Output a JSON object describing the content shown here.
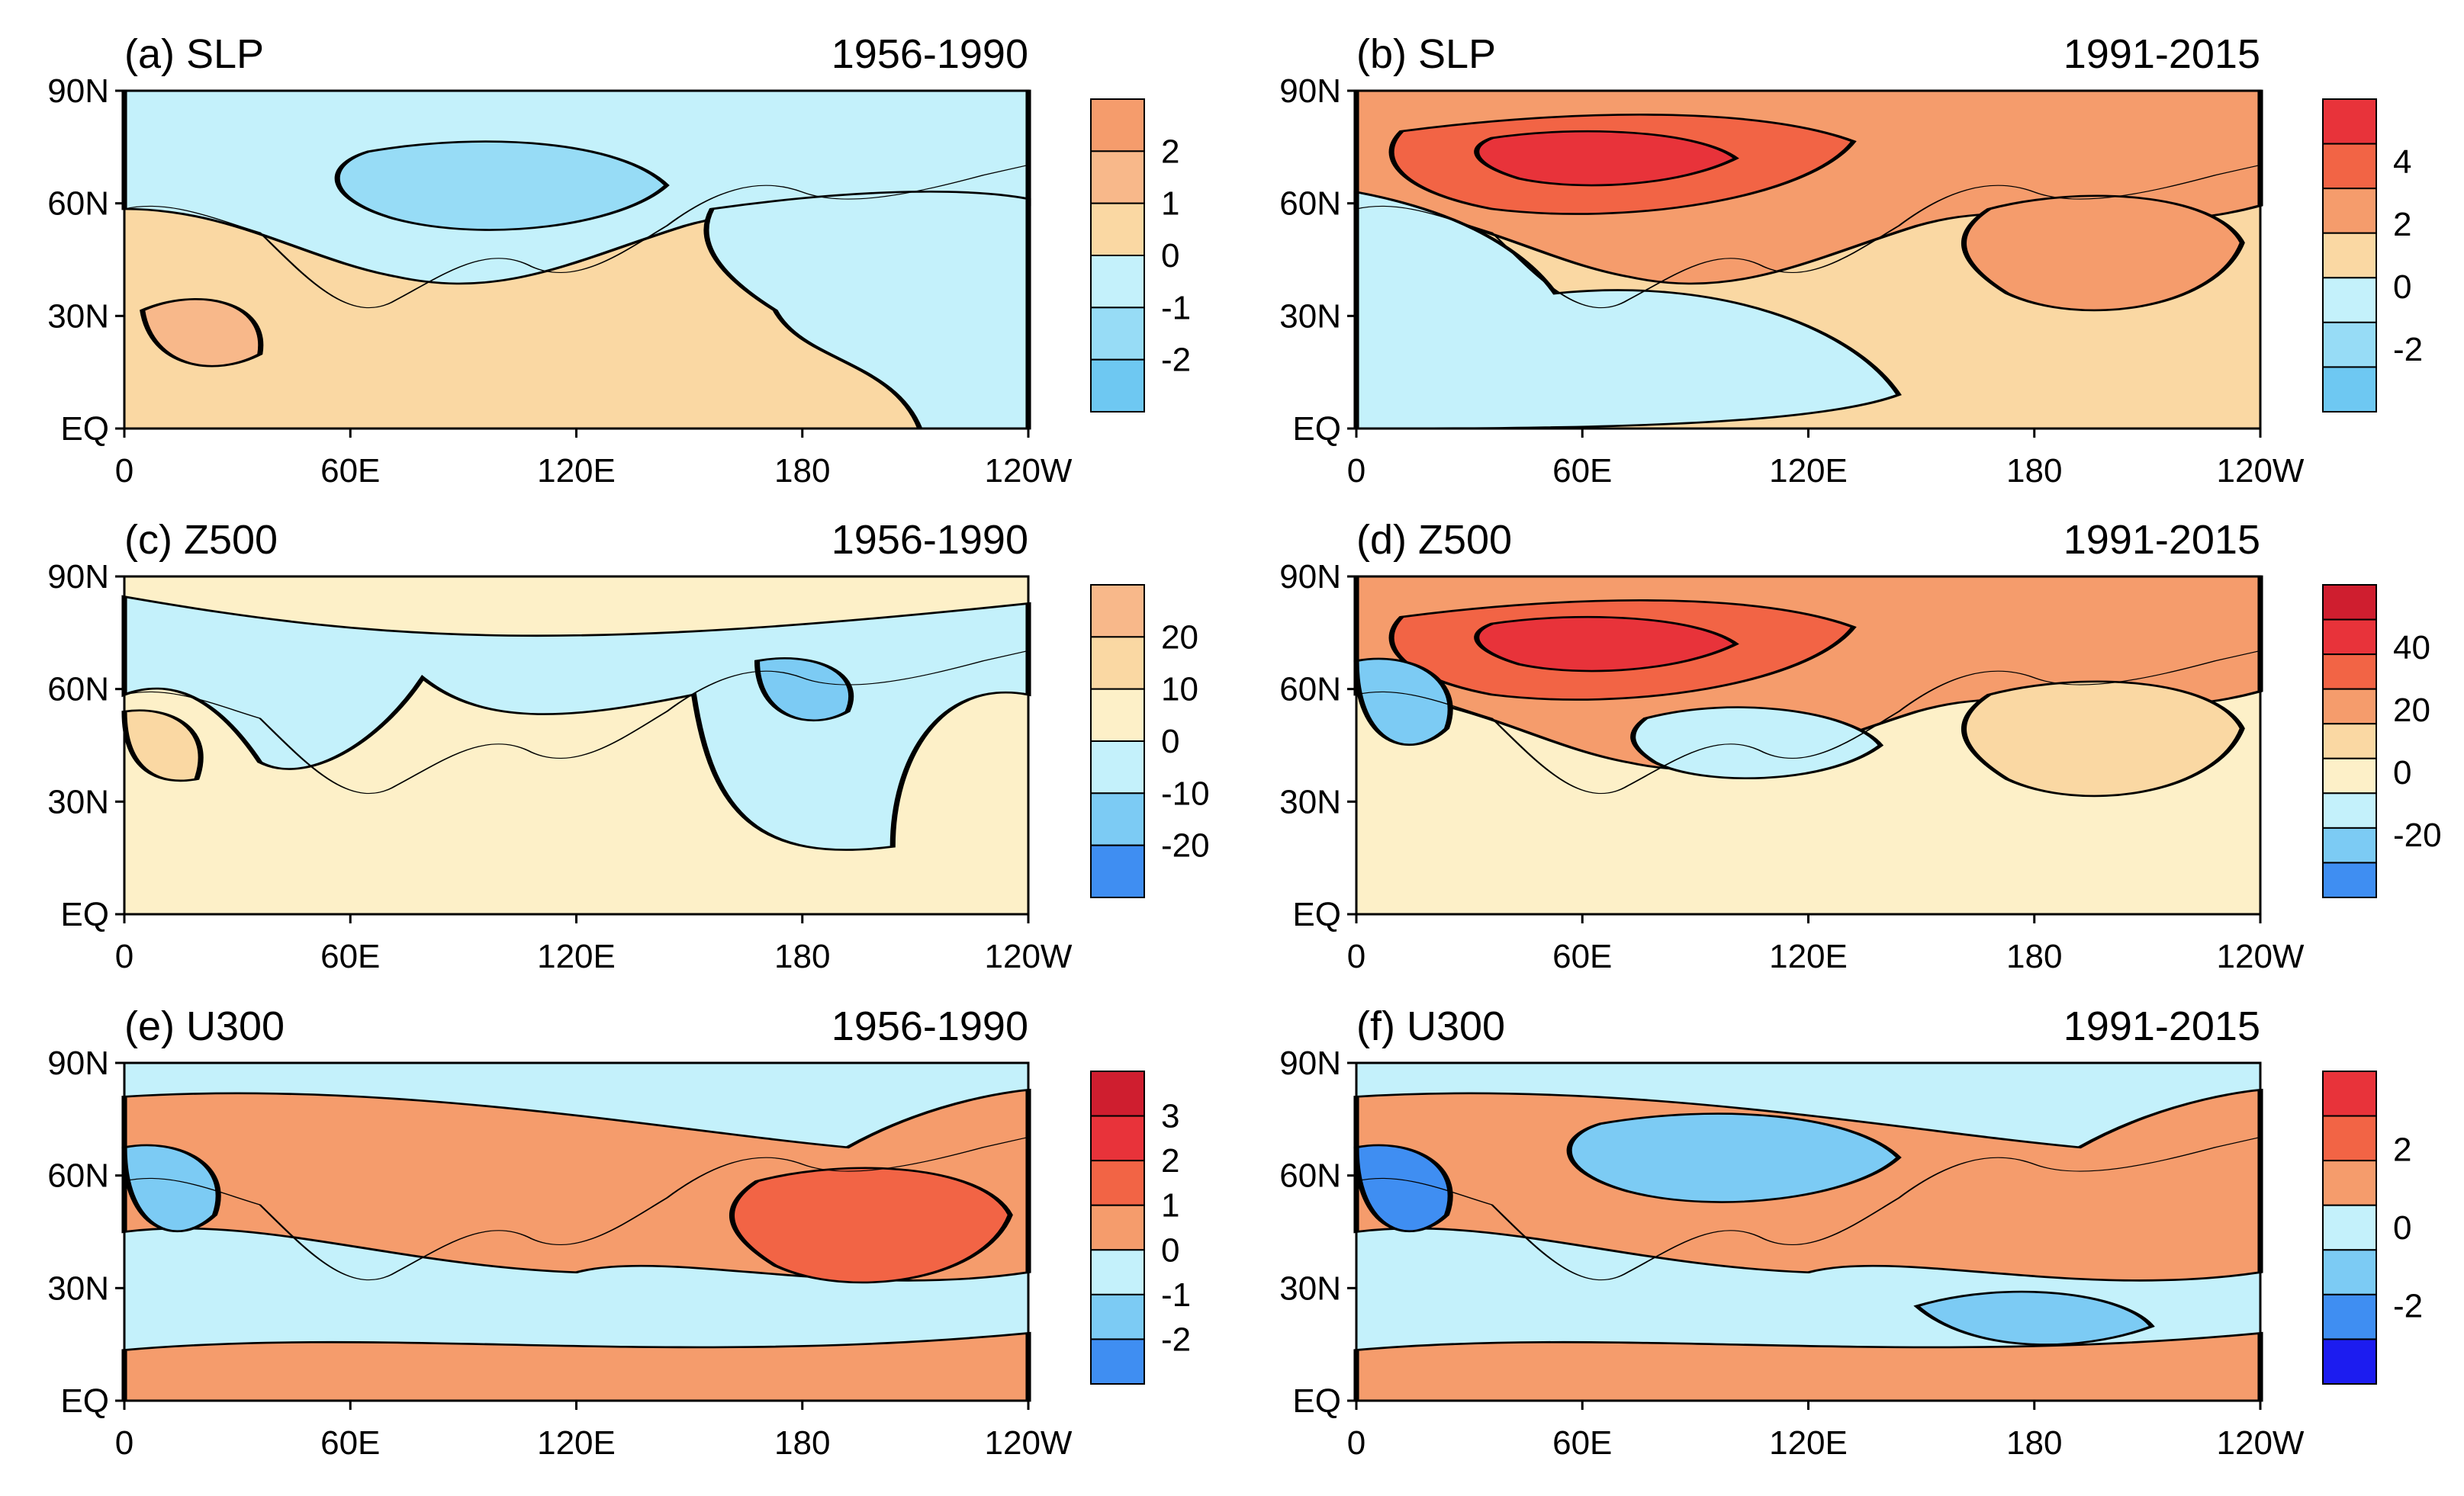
{
  "axes": {
    "lat_ticks": [
      "90N",
      "60N",
      "30N",
      "EQ"
    ],
    "lon_ticks": [
      "0",
      "60E",
      "120E",
      "180",
      "120W"
    ]
  },
  "panels": [
    {
      "id": "a",
      "title": "(a) SLP",
      "period": "1956-1990",
      "colorbar": {
        "labels": [
          "2",
          "1",
          "0",
          "-1",
          "-2"
        ],
        "colors": [
          "#f59c6c",
          "#f8b88a",
          "#fad8a3",
          "#c4f1fb",
          "#97dcf6",
          "#6ec8f2"
        ]
      },
      "map": {
        "base": "#fad8a3",
        "regions": [
          {
            "color": "#c4f1fb",
            "shape": "north-band"
          },
          {
            "color": "#97dcf6",
            "shape": "blob-siberia"
          },
          {
            "color": "#c4f1fb",
            "shape": "pacific-east"
          },
          {
            "color": "#f8b88a",
            "shape": "blob-africa"
          }
        ]
      }
    },
    {
      "id": "b",
      "title": "(b) SLP",
      "period": "1991-2015",
      "colorbar": {
        "labels": [
          "4",
          "2",
          "0",
          "-2"
        ],
        "colors": [
          "#e8333a",
          "#f26445",
          "#f59c6c",
          "#fad8a3",
          "#c4f1fb",
          "#97dcf6",
          "#6ec8f2"
        ]
      },
      "map": {
        "base": "#fad8a3",
        "regions": [
          {
            "color": "#f59c6c",
            "shape": "north-band"
          },
          {
            "color": "#f26445",
            "shape": "blob-ural"
          },
          {
            "color": "#e8333a",
            "shape": "blob-ural-core"
          },
          {
            "color": "#c4f1fb",
            "shape": "europe-south"
          },
          {
            "color": "#f59c6c",
            "shape": "blob-pacific"
          }
        ]
      }
    },
    {
      "id": "c",
      "title": "(c) Z500",
      "period": "1956-1990",
      "colorbar": {
        "labels": [
          "20",
          "10",
          "0",
          "-10",
          "-20"
        ],
        "colors": [
          "#f8b88a",
          "#fad8a3",
          "#fdf0c8",
          "#c4f1fb",
          "#7ccbf4",
          "#3f8ef2"
        ]
      },
      "map": {
        "base": "#fdf0c8",
        "regions": [
          {
            "color": "#c4f1fb",
            "shape": "north-band-wide"
          },
          {
            "color": "#7ccbf4",
            "shape": "blob-kamchatka"
          },
          {
            "color": "#fad8a3",
            "shape": "blob-europe-west"
          }
        ]
      }
    },
    {
      "id": "d",
      "title": "(d) Z500",
      "period": "1991-2015",
      "colorbar": {
        "labels": [
          "40",
          "20",
          "0",
          "-20"
        ],
        "colors": [
          "#cf1e2f",
          "#e8333a",
          "#f26445",
          "#f59c6c",
          "#fad8a3",
          "#fdf0c8",
          "#c4f1fb",
          "#7ccbf4",
          "#3f8ef2"
        ]
      },
      "map": {
        "base": "#fdf0c8",
        "regions": [
          {
            "color": "#f59c6c",
            "shape": "north-band"
          },
          {
            "color": "#f26445",
            "shape": "blob-ural"
          },
          {
            "color": "#e8333a",
            "shape": "blob-ural-core"
          },
          {
            "color": "#7ccbf4",
            "shape": "blob-atlantic"
          },
          {
            "color": "#c4f1fb",
            "shape": "blob-mongolia"
          },
          {
            "color": "#fad8a3",
            "shape": "blob-pacific"
          }
        ]
      }
    },
    {
      "id": "e",
      "title": "(e) U300",
      "period": "1956-1990",
      "colorbar": {
        "labels": [
          "3",
          "2",
          "1",
          "0",
          "-1",
          "-2"
        ],
        "colors": [
          "#cf1e2f",
          "#e8333a",
          "#f26445",
          "#f59c6c",
          "#c4f1fb",
          "#7ccbf4",
          "#3f8ef2"
        ]
      },
      "map": {
        "base": "#c4f1fb",
        "regions": [
          {
            "color": "#f59c6c",
            "shape": "mid-band"
          },
          {
            "color": "#f59c6c",
            "shape": "south-band"
          },
          {
            "color": "#f26445",
            "shape": "blob-pacific"
          },
          {
            "color": "#7ccbf4",
            "shape": "blob-atlantic"
          }
        ]
      }
    },
    {
      "id": "f",
      "title": "(f) U300",
      "period": "1991-2015",
      "colorbar": {
        "labels": [
          "2",
          "0",
          "-2"
        ],
        "colors": [
          "#e8333a",
          "#f26445",
          "#f59c6c",
          "#c4f1fb",
          "#7ccbf4",
          "#3f8ef2",
          "#1c1cf0"
        ]
      },
      "map": {
        "base": "#c4f1fb",
        "regions": [
          {
            "color": "#f59c6c",
            "shape": "mid-band"
          },
          {
            "color": "#f59c6c",
            "shape": "south-band"
          },
          {
            "color": "#7ccbf4",
            "shape": "blob-siberia"
          },
          {
            "color": "#3f8ef2",
            "shape": "blob-atlantic"
          },
          {
            "color": "#7ccbf4",
            "shape": "blob-pacific-south"
          }
        ]
      }
    }
  ]
}
